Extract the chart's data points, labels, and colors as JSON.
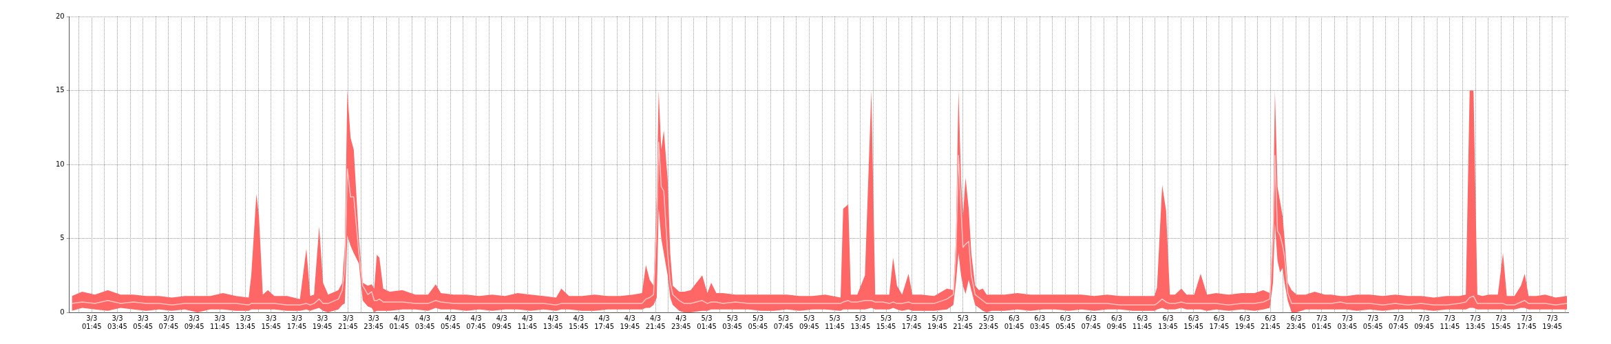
{
  "chart_data": {
    "type": "line",
    "xlim": [
      "--03-03T00:00",
      "--03-07T21:00"
    ],
    "ylim": [
      0,
      20
    ],
    "yticks": [
      0,
      5,
      10,
      15,
      20
    ],
    "grid": true,
    "legend": false,
    "marker": "none",
    "xticks": [
      {
        "value": "--03-03T00:45",
        "label": null
      },
      {
        "value": "--03-03T01:45",
        "label": "3/3 01:45"
      },
      {
        "value": "--03-03T02:45",
        "label": null
      },
      {
        "value": "--03-03T03:45",
        "label": "3/3 03:45"
      },
      {
        "value": "--03-03T04:45",
        "label": null
      },
      {
        "value": "--03-03T05:45",
        "label": "3/3 05:45"
      },
      {
        "value": "--03-03T06:45",
        "label": null
      },
      {
        "value": "--03-03T07:45",
        "label": "3/3 07:45"
      },
      {
        "value": "--03-03T08:45",
        "label": null
      },
      {
        "value": "--03-03T09:45",
        "label": "3/3 09:45"
      },
      {
        "value": "--03-03T10:45",
        "label": null
      },
      {
        "value": "--03-03T11:45",
        "label": "3/3 11:45"
      },
      {
        "value": "--03-03T12:45",
        "label": null
      },
      {
        "value": "--03-03T13:45",
        "label": "3/3 13:45"
      },
      {
        "value": "--03-03T14:45",
        "label": null
      },
      {
        "value": "--03-03T15:45",
        "label": "3/3 15:45"
      },
      {
        "value": "--03-03T16:45",
        "label": null
      },
      {
        "value": "--03-03T17:45",
        "label": "3/3 17:45"
      },
      {
        "value": "--03-03T18:45",
        "label": null
      },
      {
        "value": "--03-03T19:45",
        "label": "3/3 19:45"
      },
      {
        "value": "--03-03T20:45",
        "label": null
      },
      {
        "value": "--03-03T21:45",
        "label": "3/3 21:45"
      },
      {
        "value": "--03-03T22:45",
        "label": null
      },
      {
        "value": "--03-03T23:45",
        "label": "3/3 23:45"
      },
      {
        "value": "--03-04T00:45",
        "label": null
      },
      {
        "value": "--03-04T01:45",
        "label": "4/3 01:45"
      },
      {
        "value": "--03-04T02:45",
        "label": null
      },
      {
        "value": "--03-04T03:45",
        "label": "4/3 03:45"
      },
      {
        "value": "--03-04T04:45",
        "label": null
      },
      {
        "value": "--03-04T05:45",
        "label": "4/3 05:45"
      },
      {
        "value": "--03-04T06:45",
        "label": null
      },
      {
        "value": "--03-04T07:45",
        "label": "4/3 07:45"
      },
      {
        "value": "--03-04T08:45",
        "label": null
      },
      {
        "value": "--03-04T09:45",
        "label": "4/3 09:45"
      },
      {
        "value": "--03-04T10:45",
        "label": null
      },
      {
        "value": "--03-04T11:45",
        "label": "4/3 11:45"
      },
      {
        "value": "--03-04T12:45",
        "label": null
      },
      {
        "value": "--03-04T13:45",
        "label": "4/3 13:45"
      },
      {
        "value": "--03-04T14:45",
        "label": null
      },
      {
        "value": "--03-04T15:45",
        "label": "4/3 15:45"
      },
      {
        "value": "--03-04T16:45",
        "label": null
      },
      {
        "value": "--03-04T17:45",
        "label": "4/3 17:45"
      },
      {
        "value": "--03-04T18:45",
        "label": null
      },
      {
        "value": "--03-04T19:45",
        "label": "4/3 19:45"
      },
      {
        "value": "--03-04T20:45",
        "label": null
      },
      {
        "value": "--03-04T21:45",
        "label": "4/3 21:45"
      },
      {
        "value": "--03-04T22:45",
        "label": null
      },
      {
        "value": "--03-04T23:45",
        "label": "4/3 23:45"
      },
      {
        "value": "--03-05T00:45",
        "label": null
      },
      {
        "value": "--03-05T01:45",
        "label": "5/3 01:45"
      },
      {
        "value": "--03-05T02:45",
        "label": null
      },
      {
        "value": "--03-05T03:45",
        "label": "5/3 03:45"
      },
      {
        "value": "--03-05T04:45",
        "label": null
      },
      {
        "value": "--03-05T05:45",
        "label": "5/3 05:45"
      },
      {
        "value": "--03-05T06:45",
        "label": null
      },
      {
        "value": "--03-05T07:45",
        "label": "5/3 07:45"
      },
      {
        "value": "--03-05T08:45",
        "label": null
      },
      {
        "value": "--03-05T09:45",
        "label": "5/3 09:45"
      },
      {
        "value": "--03-05T10:45",
        "label": null
      },
      {
        "value": "--03-05T11:45",
        "label": "5/3 11:45"
      },
      {
        "value": "--03-05T12:45",
        "label": null
      },
      {
        "value": "--03-05T13:45",
        "label": "5/3 13:45"
      },
      {
        "value": "--03-05T14:45",
        "label": null
      },
      {
        "value": "--03-05T15:45",
        "label": "5/3 15:45"
      },
      {
        "value": "--03-05T16:45",
        "label": null
      },
      {
        "value": "--03-05T17:45",
        "label": "5/3 17:45"
      },
      {
        "value": "--03-05T18:45",
        "label": null
      },
      {
        "value": "--03-05T19:45",
        "label": "5/3 19:45"
      },
      {
        "value": "--03-05T20:45",
        "label": null
      },
      {
        "value": "--03-05T21:45",
        "label": "5/3 21:45"
      },
      {
        "value": "--03-05T22:45",
        "label": null
      },
      {
        "value": "--03-05T23:45",
        "label": "5/3 23:45"
      },
      {
        "value": "--03-06T00:45",
        "label": null
      },
      {
        "value": "--03-06T01:45",
        "label": "6/3 01:45"
      },
      {
        "value": "--03-06T02:45",
        "label": null
      },
      {
        "value": "--03-06T03:45",
        "label": "6/3 03:45"
      },
      {
        "value": "--03-06T04:45",
        "label": null
      },
      {
        "value": "--03-06T05:45",
        "label": "6/3 05:45"
      },
      {
        "value": "--03-06T06:45",
        "label": null
      },
      {
        "value": "--03-06T07:45",
        "label": "6/3 07:45"
      },
      {
        "value": "--03-06T08:45",
        "label": null
      },
      {
        "value": "--03-06T09:45",
        "label": "6/3 09:45"
      },
      {
        "value": "--03-06T10:45",
        "label": null
      },
      {
        "value": "--03-06T11:45",
        "label": "6/3 11:45"
      },
      {
        "value": "--03-06T12:45",
        "label": null
      },
      {
        "value": "--03-06T13:45",
        "label": "6/3 13:45"
      },
      {
        "value": "--03-06T14:45",
        "label": null
      },
      {
        "value": "--03-06T15:45",
        "label": "6/3 15:45"
      },
      {
        "value": "--03-06T16:45",
        "label": null
      },
      {
        "value": "--03-06T17:45",
        "label": "6/3 17:45"
      },
      {
        "value": "--03-06T18:45",
        "label": null
      },
      {
        "value": "--03-06T19:45",
        "label": "6/3 19:45"
      },
      {
        "value": "--03-06T20:45",
        "label": null
      },
      {
        "value": "--03-06T21:45",
        "label": "6/3 21:45"
      },
      {
        "value": "--03-06T22:45",
        "label": null
      },
      {
        "value": "--03-06T23:45",
        "label": "6/3 23:45"
      },
      {
        "value": "--03-07T00:45",
        "label": null
      },
      {
        "value": "--03-07T01:45",
        "label": "7/3 01:45"
      },
      {
        "value": "--03-07T02:45",
        "label": null
      },
      {
        "value": "--03-07T03:45",
        "label": "7/3 03:45"
      },
      {
        "value": "--03-07T04:45",
        "label": null
      },
      {
        "value": "--03-07T05:45",
        "label": "7/3 05:45"
      },
      {
        "value": "--03-07T06:45",
        "label": null
      },
      {
        "value": "--03-07T07:45",
        "label": "7/3 07:45"
      },
      {
        "value": "--03-07T08:45",
        "label": null
      },
      {
        "value": "--03-07T09:45",
        "label": "7/3 09:45"
      },
      {
        "value": "--03-07T10:45",
        "label": null
      },
      {
        "value": "--03-07T11:45",
        "label": "7/3 11:45"
      },
      {
        "value": "--03-07T12:45",
        "label": null
      },
      {
        "value": "--03-07T13:45",
        "label": "7/3 13:45"
      },
      {
        "value": "--03-07T14:45",
        "label": null
      },
      {
        "value": "--03-07T15:45",
        "label": "7/3 15:45"
      },
      {
        "value": "--03-07T16:45",
        "label": null
      },
      {
        "value": "--03-07T17:45",
        "label": "7/3 17:45"
      },
      {
        "value": "--03-07T18:45",
        "label": null
      },
      {
        "value": "--03-07T19:45",
        "label": "7/3 19:45"
      },
      {
        "value": "--03-07T20:45",
        "label": null
      }
    ],
    "x": [
      "--03-03T00:12",
      "--03-03T01:00",
      "--03-03T02:00",
      "--03-03T03:00",
      "--03-03T04:00",
      "--03-03T05:00",
      "--03-03T06:00",
      "--03-03T07:00",
      "--03-03T08:00",
      "--03-03T09:00",
      "--03-03T10:00",
      "--03-03T11:00",
      "--03-03T12:00",
      "--03-03T13:00",
      "--03-03T14:00",
      "--03-03T14:12",
      "--03-03T14:36",
      "--03-03T14:48",
      "--03-03T15:06",
      "--03-03T15:30",
      "--03-03T16:00",
      "--03-03T17:00",
      "--03-03T18:00",
      "--03-03T18:30",
      "--03-03T18:48",
      "--03-03T19:06",
      "--03-03T19:30",
      "--03-03T19:48",
      "--03-03T20:12",
      "--03-03T21:00",
      "--03-03T21:18",
      "--03-03T21:30",
      "--03-03T21:42",
      "--03-03T21:57",
      "--03-03T22:12",
      "--03-03T22:36",
      "--03-03T22:54",
      "--03-03T23:18",
      "--03-03T23:36",
      "--03-03T23:48",
      "--03-04T00:00",
      "--03-04T00:12",
      "--03-04T00:30",
      "--03-04T01:00",
      "--03-04T02:00",
      "--03-04T03:00",
      "--03-04T04:00",
      "--03-04T04:36",
      "--03-04T05:00",
      "--03-04T06:00",
      "--03-04T07:00",
      "--03-04T08:00",
      "--03-04T09:00",
      "--03-04T10:00",
      "--03-04T11:00",
      "--03-04T12:00",
      "--03-04T13:00",
      "--03-04T14:00",
      "--03-04T14:24",
      "--03-04T15:00",
      "--03-04T16:00",
      "--03-04T17:00",
      "--03-04T18:00",
      "--03-04T19:00",
      "--03-04T20:00",
      "--03-04T20:42",
      "--03-04T21:00",
      "--03-04T21:18",
      "--03-04T21:36",
      "--03-04T21:51",
      "--03-04T22:00",
      "--03-04T22:12",
      "--03-04T22:24",
      "--03-04T22:42",
      "--03-04T22:54",
      "--03-04T23:06",
      "--03-04T23:36",
      "--03-05T00:00",
      "--03-05T00:30",
      "--03-05T01:24",
      "--03-05T01:48",
      "--03-05T02:06",
      "--03-05T02:30",
      "--03-05T03:00",
      "--03-05T04:00",
      "--03-05T05:00",
      "--03-05T06:00",
      "--03-05T07:00",
      "--03-05T08:00",
      "--03-05T09:00",
      "--03-05T10:00",
      "--03-05T11:00",
      "--03-05T12:12",
      "--03-05T12:24",
      "--03-05T12:48",
      "--03-05T13:00",
      "--03-05T13:30",
      "--03-05T14:06",
      "--03-05T14:36",
      "--03-05T14:54",
      "--03-05T15:30",
      "--03-05T16:00",
      "--03-05T16:18",
      "--03-05T16:36",
      "--03-05T17:00",
      "--03-05T17:30",
      "--03-05T17:48",
      "--03-05T18:30",
      "--03-05T19:30",
      "--03-05T20:30",
      "--03-05T21:00",
      "--03-05T21:12",
      "--03-05T21:24",
      "--03-05T21:36",
      "--03-05T21:45",
      "--03-05T21:57",
      "--03-05T22:12",
      "--03-05T22:24",
      "--03-05T22:42",
      "--03-05T23:00",
      "--03-05T23:18",
      "--03-05T23:36",
      "--03-06T00:00",
      "--03-06T01:00",
      "--03-06T02:00",
      "--03-06T03:00",
      "--03-06T04:00",
      "--03-06T05:00",
      "--03-06T06:00",
      "--03-06T07:00",
      "--03-06T08:00",
      "--03-06T09:00",
      "--03-06T10:00",
      "--03-06T11:00",
      "--03-06T12:00",
      "--03-06T12:42",
      "--03-06T12:54",
      "--03-06T13:18",
      "--03-06T13:36",
      "--03-06T13:54",
      "--03-06T14:18",
      "--03-06T14:48",
      "--03-06T15:12",
      "--03-06T15:48",
      "--03-06T16:18",
      "--03-06T16:48",
      "--03-06T17:30",
      "--03-06T18:30",
      "--03-06T19:30",
      "--03-06T20:30",
      "--03-06T21:12",
      "--03-06T21:42",
      "--03-06T21:57",
      "--03-06T22:06",
      "--03-06T22:18",
      "--03-06T22:30",
      "--03-06T22:42",
      "--03-06T22:51",
      "--03-06T23:06",
      "--03-06T23:24",
      "--03-06T23:48",
      "--03-07T00:30",
      "--03-07T01:12",
      "--03-07T02:00",
      "--03-07T02:30",
      "--03-07T03:12",
      "--03-07T03:42",
      "--03-07T04:30",
      "--03-07T05:30",
      "--03-07T06:30",
      "--03-07T07:30",
      "--03-07T08:30",
      "--03-07T09:30",
      "--03-07T10:30",
      "--03-07T11:30",
      "--03-07T12:30",
      "--03-07T13:00",
      "--03-07T13:18",
      "--03-07T13:36",
      "--03-07T13:54",
      "--03-07T14:18",
      "--03-07T14:48",
      "--03-07T15:30",
      "--03-07T15:54",
      "--03-07T16:12",
      "--03-07T16:48",
      "--03-07T17:18",
      "--03-07T17:36",
      "--03-07T17:54",
      "--03-07T18:30",
      "--03-07T19:12",
      "--03-07T20:00",
      "--03-07T20:54"
    ],
    "series": [
      {
        "color": "#ffc4c4",
        "values": [
          0.6,
          0.7,
          0.6,
          0.8,
          0.6,
          0.7,
          0.6,
          0.6,
          0.5,
          0.6,
          0.6,
          0.6,
          0.6,
          0.6,
          0.5,
          0.6,
          0.6,
          0.6,
          0.6,
          0.6,
          0.6,
          0.5,
          0.5,
          0.6,
          0.5,
          0.6,
          0.9,
          0.6,
          0.6,
          0.9,
          1.5,
          3.0,
          9.7,
          7.8,
          7.8,
          4.0,
          1.8,
          1.2,
          1.4,
          0.8,
          0.8,
          0.9,
          0.7,
          0.7,
          0.7,
          0.6,
          0.6,
          0.8,
          0.7,
          0.6,
          0.6,
          0.6,
          0.6,
          0.6,
          0.6,
          0.6,
          0.6,
          0.5,
          0.6,
          0.6,
          0.6,
          0.6,
          0.6,
          0.6,
          0.6,
          0.6,
          0.9,
          1.0,
          1.2,
          6,
          11.5,
          8.5,
          8.2,
          4,
          2,
          1.2,
          0.8,
          0.6,
          0.6,
          0.8,
          0.6,
          0.7,
          0.7,
          0.6,
          0.7,
          0.6,
          0.6,
          0.6,
          0.6,
          0.6,
          0.6,
          0.6,
          0.6,
          0.7,
          0.8,
          0.7,
          0.7,
          0.8,
          0.8,
          0.7,
          0.7,
          0.6,
          0.7,
          0.6,
          0.6,
          0.7,
          0.6,
          0.6,
          0.6,
          0.9,
          1.2,
          4,
          10.6,
          7,
          4.4,
          4.6,
          4.8,
          2.5,
          1.2,
          1.0,
          0.8,
          0.6,
          0.6,
          0.6,
          0.6,
          0.6,
          0.6,
          0.6,
          0.6,
          0.6,
          0.6,
          0.6,
          0.5,
          0.5,
          0.5,
          0.5,
          0.6,
          0.9,
          0.7,
          0.6,
          0.6,
          0.7,
          0.6,
          0.6,
          0.6,
          0.6,
          0.6,
          0.5,
          0.6,
          0.6,
          0.7,
          0.9,
          5,
          10.6,
          5.5,
          5.2,
          4.5,
          3.8,
          1.3,
          0.6,
          0.6,
          0.6,
          0.6,
          0.6,
          0.6,
          0.7,
          0.6,
          0.6,
          0.6,
          0.5,
          0.6,
          0.5,
          0.6,
          0.5,
          0.5,
          0.6,
          0.7,
          1.0,
          1.1,
          0.6,
          0.6,
          0.6,
          0.6,
          0.6,
          0.5,
          0.5,
          0.7,
          0.8,
          0.6,
          0.6,
          0.6,
          0.5,
          0.6
        ],
        "lower": [
          0.1,
          0.3,
          0.2,
          0.1,
          0.3,
          0.2,
          0.1,
          0.2,
          0.1,
          0.2,
          0.0,
          0.2,
          0.2,
          0.1,
          0.1,
          0.2,
          0.2,
          0.2,
          0.2,
          0.2,
          0.2,
          0.1,
          0.1,
          0.2,
          0.1,
          0.2,
          0.3,
          0.1,
          0.0,
          0.2,
          0.5,
          0.6,
          5.2,
          4.5,
          4.0,
          3.3,
          0.8,
          0.4,
          0.3,
          0.0,
          0.1,
          0.1,
          0.1,
          0.1,
          0.2,
          0.2,
          0.1,
          0.3,
          0.2,
          0.2,
          0.1,
          0.2,
          0.1,
          0.2,
          0.2,
          0.1,
          0.2,
          0.1,
          0.2,
          0.2,
          0.1,
          0.1,
          0.2,
          0.2,
          0.2,
          0.2,
          0.3,
          0.3,
          0.5,
          1,
          7,
          5,
          4,
          2.5,
          1,
          0.5,
          0.1,
          0.0,
          0.0,
          0.1,
          0.1,
          0.2,
          0.2,
          0.2,
          0.2,
          0.2,
          0.1,
          0.1,
          0.2,
          0.1,
          0.2,
          0.2,
          0.1,
          0.2,
          0.2,
          0.2,
          0.2,
          0.2,
          0.3,
          0.2,
          0.2,
          0.2,
          0.3,
          0.2,
          0.1,
          0.2,
          0.1,
          0.1,
          0.1,
          0.2,
          0.5,
          2,
          4,
          2.5,
          1.8,
          1.25,
          2.2,
          1.5,
          0.5,
          0.3,
          0.1,
          0.0,
          0.1,
          0.1,
          0.2,
          0.1,
          0.2,
          0.2,
          0.1,
          0.2,
          0.1,
          0.2,
          0.2,
          0.1,
          0.1,
          0.1,
          0.2,
          0.3,
          0.2,
          0.2,
          0.2,
          0.3,
          0.2,
          0.2,
          0.2,
          0.1,
          0.2,
          0.1,
          0.2,
          0.1,
          0.2,
          0.3,
          2,
          6,
          3.5,
          2.7,
          3.0,
          2,
          0.8,
          0.0,
          0.0,
          0.2,
          0.2,
          0.2,
          0.2,
          0.2,
          0.2,
          0.1,
          0.2,
          0.1,
          0.2,
          0.2,
          0.2,
          0.1,
          0.2,
          0.2,
          0.2,
          0.3,
          0.3,
          0.2,
          0.2,
          0.2,
          0.2,
          0.2,
          0.2,
          0.2,
          0.3,
          0.3,
          0.2,
          0.2,
          0.2,
          0.2,
          0.2
        ],
        "upper": [
          1.1,
          1.4,
          1.2,
          1.5,
          1.2,
          1.2,
          1.1,
          1.1,
          1.0,
          1.1,
          1.1,
          1.1,
          1.3,
          1.1,
          1.0,
          2.5,
          8.0,
          6.5,
          1.2,
          1.5,
          1.1,
          1.1,
          0.9,
          4.3,
          1.1,
          1.2,
          5.8,
          2.0,
          1.2,
          1.5,
          2.0,
          4.5,
          15,
          11.8,
          11,
          5,
          2.0,
          1.8,
          1.9,
          1.6,
          3.9,
          3.7,
          1.6,
          1.4,
          1.5,
          1.2,
          1.2,
          1.9,
          1.3,
          1.2,
          1.2,
          1.1,
          1.2,
          1.1,
          1.3,
          1.2,
          1.1,
          1.0,
          1.6,
          1.1,
          1.1,
          1.2,
          1.1,
          1.1,
          1.2,
          1.3,
          3.2,
          2.2,
          1.8,
          8,
          15,
          11,
          12.3,
          9,
          4,
          1.8,
          1.4,
          1.4,
          1.5,
          2.5,
          1.3,
          2.0,
          1.3,
          1.3,
          1.2,
          1.2,
          1.2,
          1.2,
          1.2,
          1.1,
          1.1,
          1.2,
          1.0,
          7.0,
          7.3,
          1.2,
          1.2,
          2.5,
          15,
          1.2,
          1.2,
          1.2,
          3.7,
          1.8,
          1.2,
          2.6,
          1.2,
          1.2,
          1.1,
          1.6,
          1.5,
          5,
          15,
          9,
          6.5,
          9.1,
          7,
          4,
          1.8,
          1.5,
          1.6,
          1.2,
          1.2,
          1.2,
          1.3,
          1.2,
          1.2,
          1.2,
          1.2,
          1.2,
          1.1,
          1.2,
          1.1,
          1.1,
          1.1,
          1.1,
          1.7,
          8.6,
          6.9,
          1.2,
          1.2,
          1.6,
          1.2,
          1.2,
          2.6,
          1.2,
          1.3,
          1.2,
          1.3,
          1.3,
          1.5,
          1.3,
          6,
          15,
          8.5,
          7.5,
          6.5,
          5,
          2,
          1.5,
          1.2,
          1.2,
          1.4,
          1.2,
          1.2,
          1.1,
          1.1,
          1.2,
          1.2,
          1.1,
          1.2,
          1.1,
          1.1,
          1.0,
          1.1,
          1.1,
          1.2,
          15,
          15,
          1.2,
          1.1,
          1.2,
          1.2,
          4.0,
          1.1,
          1.1,
          1.8,
          2.6,
          1.1,
          1.1,
          1.2,
          1.0,
          1.1
        ]
      }
    ]
  }
}
